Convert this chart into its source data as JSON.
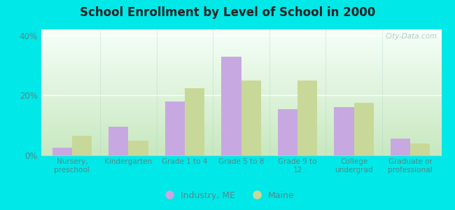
{
  "title": "School Enrollment by Level of School in 2000",
  "categories": [
    "Nursery,\npreschool",
    "Kindergarten",
    "Grade 1 to 4",
    "Grade 5 to 8",
    "Grade 9 to\n12",
    "College\nundergrad",
    "Graduate or\nprofessional"
  ],
  "industry_values": [
    2.5,
    9.5,
    18.0,
    33.0,
    15.5,
    16.0,
    5.5
  ],
  "maine_values": [
    6.5,
    5.0,
    22.5,
    25.0,
    25.0,
    17.5,
    4.0
  ],
  "industry_color": "#c8a8e0",
  "maine_color": "#c8d898",
  "bg_color": "#00e8e8",
  "ylim": [
    0,
    42
  ],
  "yticks": [
    0,
    20,
    40
  ],
  "ytick_labels": [
    "0%",
    "20%",
    "40%"
  ],
  "legend_label_industry": "Industry, ME",
  "legend_label_maine": "Maine",
  "watermark": "City-Data.com",
  "bar_width": 0.35,
  "gradient_colors": [
    "#c8e8c0",
    "#f5fff8"
  ],
  "tick_label_color": "#558888",
  "title_color": "#222222"
}
